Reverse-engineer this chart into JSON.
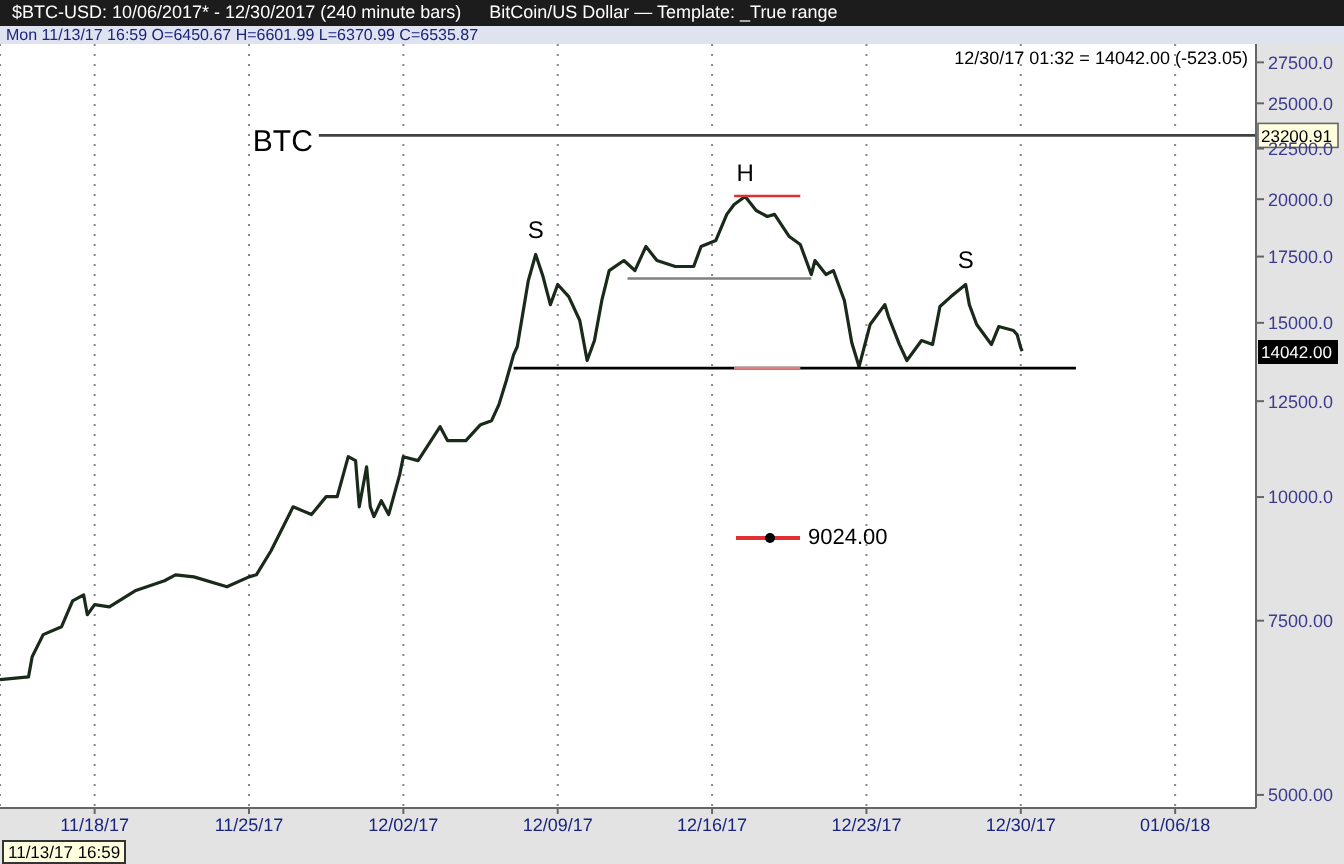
{
  "chart_data": {
    "type": "line",
    "title": "$BTC-USD:  10/06/2017* - 12/30/2017  (240 minute bars)",
    "subtitle": "BitCoin/US Dollar  —  Template: _True range",
    "annotations": [
      "Mon  11/13/17 16:59  O=6450.67  H=6601.99  L=6370.99  C=6535.87",
      "12/30/17 01:32 = 14042.00 (-523.05)",
      "11/13/17 16:59",
      "9024.00",
      "14042.00",
      {
        "text": "BTC",
        "x": "2017-11-28T04:00",
        "y": 23200.91
      },
      {
        "text": "S",
        "x": "2017-12-08T00:00",
        "y": 17585
      },
      {
        "text": "H",
        "x": "2017-12-17T12:00",
        "y": 20125
      },
      {
        "text": "S",
        "x": "2017-12-27T12:00",
        "y": 16400
      },
      {
        "text": "23200.91",
        "x": "2018-01-09T16:00",
        "y": 23200.91
      }
    ],
    "series": [
      {
        "color": "#1a2a1a",
        "x": [
          "2017-11-13T16:59",
          "2017-11-15T00:00",
          "2017-11-15T04:00",
          "2017-11-15T16:00",
          "2017-11-16T12:00",
          "2017-11-17T00:00",
          "2017-11-17T12:00",
          "2017-11-17T16:00",
          "2017-11-18T00:00",
          "2017-11-18T16:00",
          "2017-11-19T20:00",
          "2017-11-21T04:00",
          "2017-11-21T16:00",
          "2017-11-22T12:00",
          "2017-11-24T00:00",
          "2017-11-25T00:00",
          "2017-11-25T08:00",
          "2017-11-26T00:00",
          "2017-11-27T00:00",
          "2017-11-27T20:00",
          "2017-11-28T12:00",
          "2017-11-29T00:00",
          "2017-11-29T12:00",
          "2017-11-29T20:00",
          "2017-11-30T00:00",
          "2017-11-30T08:00",
          "2017-11-30T12:00",
          "2017-11-30T16:00",
          "2017-12-01T00:00",
          "2017-12-01T08:00",
          "2017-12-01T20:00",
          "2017-12-02T00:00",
          "2017-12-02T16:00",
          "2017-12-03T16:00",
          "2017-12-04T00:00",
          "2017-12-04T20:00",
          "2017-12-05T12:00",
          "2017-12-06T00:00",
          "2017-12-06T08:00",
          "2017-12-06T16:00",
          "2017-12-07T00:00",
          "2017-12-07T04:00",
          "2017-12-07T16:00",
          "2017-12-08T00:00",
          "2017-12-08T08:00",
          "2017-12-08T16:00",
          "2017-12-09T00:00",
          "2017-12-09T12:00",
          "2017-12-10T00:00",
          "2017-12-10T08:00",
          "2017-12-10T16:00",
          "2017-12-11T00:00",
          "2017-12-11T08:00",
          "2017-12-12T00:00",
          "2017-12-12T12:00",
          "2017-12-13T00:00",
          "2017-12-13T12:00",
          "2017-12-14T08:00",
          "2017-12-15T04:00",
          "2017-12-15T12:00",
          "2017-12-16T04:00",
          "2017-12-16T16:00",
          "2017-12-17T00:00",
          "2017-12-17T12:00",
          "2017-12-18T00:00",
          "2017-12-18T12:00",
          "2017-12-18T20:00",
          "2017-12-19T12:00",
          "2017-12-20T00:00",
          "2017-12-20T12:00",
          "2017-12-20T16:00",
          "2017-12-21T04:00",
          "2017-12-21T12:00",
          "2017-12-22T00:00",
          "2017-12-22T08:00",
          "2017-12-22T16:00",
          "2017-12-23T04:00",
          "2017-12-23T20:00",
          "2017-12-24T00:00",
          "2017-12-24T12:00",
          "2017-12-24T20:00",
          "2017-12-25T12:00",
          "2017-12-26T00:00",
          "2017-12-26T08:00",
          "2017-12-26T20:00",
          "2017-12-27T12:00",
          "2017-12-27T16:00",
          "2017-12-28T00:00",
          "2017-12-28T16:00",
          "2017-12-29T00:00",
          "2017-12-29T16:00",
          "2017-12-29T20:00",
          "2017-12-30T00:00",
          "2017-12-30T01:32"
        ],
        "values": [
          6540,
          6580,
          6895,
          7260,
          7395,
          7855,
          7965,
          7605,
          7785,
          7745,
          8040,
          8230,
          8345,
          8305,
          8115,
          8305,
          8345,
          8825,
          9775,
          9600,
          10010,
          10010,
          10985,
          10885,
          9775,
          10730,
          9775,
          9555,
          9915,
          9600,
          10535,
          10985,
          10885,
          11780,
          11405,
          11405,
          11835,
          11945,
          12400,
          13110,
          13930,
          14195,
          16550,
          17585,
          16705,
          15650,
          16400,
          15945,
          15080,
          13740,
          14395,
          15800,
          16940,
          17340,
          16940,
          17915,
          17340,
          17100,
          17100,
          17915,
          18165,
          19305,
          19755,
          20125,
          19480,
          19210,
          19305,
          18335,
          18000,
          16785,
          17340,
          16785,
          16940,
          15800,
          14330,
          13545,
          14940,
          15650,
          15220,
          14260,
          13740,
          14395,
          14260,
          15580,
          15945,
          16400,
          15650,
          14940,
          14260,
          14870,
          14735,
          14595,
          14150,
          14042
        ]
      },
      {
        "color": "#000000",
        "x": [
          "2017-12-07T00:00",
          "2018-01-01T12:00"
        ],
        "values": [
          13500,
          13500
        ]
      },
      {
        "color": "#808080",
        "x": [
          "2017-12-12T04:00",
          "2017-12-20T12:00"
        ],
        "values": [
          16630,
          16630
        ]
      },
      {
        "color": "#e03030",
        "x": [
          "2017-12-17T00:00",
          "2017-12-20T00:00"
        ],
        "values": [
          20150,
          20150
        ]
      },
      {
        "color": "#e08080",
        "x": [
          "2017-12-17T00:00",
          "2017-12-20T00:00"
        ],
        "values": [
          13500,
          13500
        ]
      },
      {
        "color": "#404040",
        "x": [
          "2017-11-28T04:00",
          "2018-01-09T16:00"
        ],
        "values": [
          23200.91,
          23200.91
        ]
      }
    ],
    "log": true,
    "grid": "x",
    "ylim": [
      4850,
      28700
    ],
    "yticks": [
      {
        "value": 5000,
        "label": "5000.00"
      },
      {
        "value": 7500,
        "label": "7500.00"
      },
      {
        "value": 10000,
        "label": "10000.0"
      },
      {
        "value": 12500,
        "label": "12500.0"
      },
      {
        "value": 15000,
        "label": "15000.0"
      },
      {
        "value": 17500,
        "label": "17500.0"
      },
      {
        "value": 20000,
        "label": "20000.0"
      },
      {
        "value": 22500,
        "label": "22500.0"
      },
      {
        "value": 25000,
        "label": "25000.0"
      },
      {
        "value": 27500,
        "label": "27500.0"
      }
    ],
    "xlim": [
      "2017-11-13T16:59",
      "2018-01-09T16:00"
    ],
    "xticks": [
      {
        "value": "2017-11-18",
        "label": "11/18/17"
      },
      {
        "value": "2017-11-25",
        "label": "11/25/17"
      },
      {
        "value": "2017-12-02",
        "label": "12/02/17"
      },
      {
        "value": "2017-12-09",
        "label": "12/09/17"
      },
      {
        "value": "2017-12-16",
        "label": "12/16/17"
      },
      {
        "value": "2017-12-23",
        "label": "12/23/17"
      },
      {
        "value": "2017-12-30",
        "label": "12/30/17"
      },
      {
        "value": "2018-01-06",
        "label": "01/06/18"
      }
    ]
  }
}
